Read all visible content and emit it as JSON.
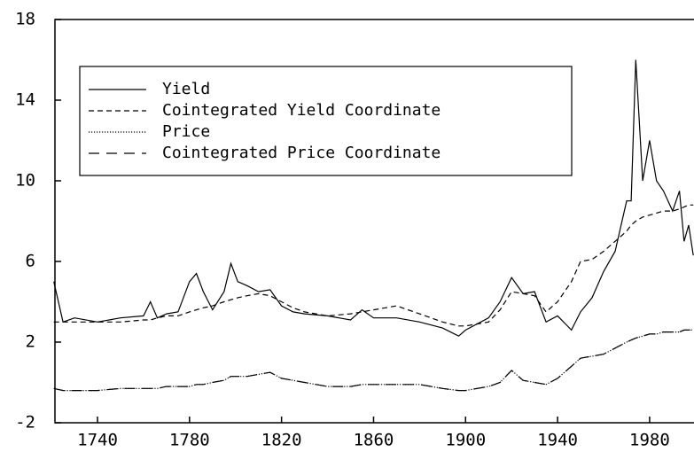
{
  "chart_data": {
    "type": "line",
    "x": [
      1721,
      1725,
      1730,
      1740,
      1750,
      1760,
      1763,
      1766,
      1770,
      1775,
      1780,
      1783,
      1786,
      1790,
      1795,
      1798,
      1801,
      1805,
      1810,
      1815,
      1820,
      1825,
      1830,
      1840,
      1850,
      1855,
      1860,
      1870,
      1880,
      1890,
      1897,
      1900,
      1910,
      1915,
      1920,
      1925,
      1930,
      1935,
      1940,
      1946,
      1950,
      1955,
      1960,
      1965,
      1970,
      1972,
      1974,
      1977,
      1980,
      1983,
      1986,
      1990,
      1993,
      1995,
      1997,
      1999
    ],
    "series": [
      {
        "name": "Yield",
        "color": "#000000",
        "style": "solid",
        "values": [
          5.0,
          3.0,
          3.2,
          3.0,
          3.2,
          3.3,
          4.0,
          3.2,
          3.4,
          3.5,
          5.0,
          5.4,
          4.5,
          3.6,
          4.5,
          5.9,
          5.0,
          4.8,
          4.5,
          4.6,
          3.8,
          3.5,
          3.4,
          3.3,
          3.1,
          3.6,
          3.2,
          3.2,
          3.0,
          2.7,
          2.3,
          2.6,
          3.2,
          4.0,
          5.2,
          4.4,
          4.5,
          3.0,
          3.3,
          2.6,
          3.5,
          4.2,
          5.5,
          6.5,
          9.0,
          9.0,
          16.0,
          10.0,
          12.0,
          10.0,
          9.5,
          8.5,
          9.5,
          7.0,
          7.8,
          6.3
        ]
      },
      {
        "name": "Cointegrated Yield Coordinate",
        "color": "#000000",
        "style": "dashed",
        "values": [
          3.0,
          3.0,
          3.0,
          3.0,
          3.0,
          3.1,
          3.1,
          3.2,
          3.3,
          3.3,
          3.5,
          3.6,
          3.7,
          3.8,
          4.0,
          4.1,
          4.2,
          4.3,
          4.4,
          4.3,
          4.0,
          3.7,
          3.5,
          3.3,
          3.4,
          3.5,
          3.6,
          3.8,
          3.4,
          3.0,
          2.8,
          2.8,
          3.0,
          3.6,
          4.5,
          4.4,
          4.3,
          3.5,
          4.0,
          5.0,
          6.0,
          6.1,
          6.5,
          7.0,
          7.5,
          7.8,
          8.0,
          8.2,
          8.3,
          8.4,
          8.5,
          8.5,
          8.6,
          8.7,
          8.8,
          8.8
        ]
      },
      {
        "name": "Price",
        "color": "#000000",
        "style": "dotted",
        "values": [
          -0.3,
          -0.4,
          -0.4,
          -0.4,
          -0.3,
          -0.3,
          -0.3,
          -0.3,
          -0.2,
          -0.2,
          -0.2,
          -0.1,
          -0.1,
          0.0,
          0.1,
          0.3,
          0.3,
          0.3,
          0.4,
          0.5,
          0.2,
          0.1,
          0.0,
          -0.2,
          -0.2,
          -0.1,
          -0.1,
          -0.1,
          -0.1,
          -0.3,
          -0.4,
          -0.4,
          -0.2,
          0.0,
          0.6,
          0.1,
          0.0,
          -0.1,
          0.2,
          0.8,
          1.2,
          1.3,
          1.4,
          1.7,
          2.0,
          2.1,
          2.2,
          2.3,
          2.4,
          2.4,
          2.5,
          2.5,
          2.5,
          2.6,
          2.6,
          2.6
        ]
      },
      {
        "name": "Cointegrated Price Coordinate",
        "color": "#000000",
        "style": "longdash",
        "values": [
          -0.3,
          -0.4,
          -0.4,
          -0.4,
          -0.3,
          -0.3,
          -0.3,
          -0.3,
          -0.2,
          -0.2,
          -0.2,
          -0.1,
          -0.1,
          0.0,
          0.1,
          0.3,
          0.3,
          0.3,
          0.4,
          0.5,
          0.2,
          0.1,
          0.0,
          -0.2,
          -0.2,
          -0.1,
          -0.1,
          -0.1,
          -0.1,
          -0.3,
          -0.4,
          -0.4,
          -0.2,
          0.0,
          0.6,
          0.1,
          0.0,
          -0.1,
          0.2,
          0.8,
          1.2,
          1.3,
          1.4,
          1.7,
          2.0,
          2.1,
          2.2,
          2.3,
          2.4,
          2.4,
          2.5,
          2.5,
          2.5,
          2.6,
          2.6,
          2.6
        ]
      }
    ],
    "xlim": [
      1721.5,
      1999.3
    ],
    "xticks": [
      1740,
      1780,
      1820,
      1860,
      1900,
      1940,
      1980
    ],
    "ylim": [
      -2,
      18
    ],
    "yticks": [
      -2,
      2,
      6,
      10,
      14,
      18
    ],
    "legend": "upper left"
  }
}
